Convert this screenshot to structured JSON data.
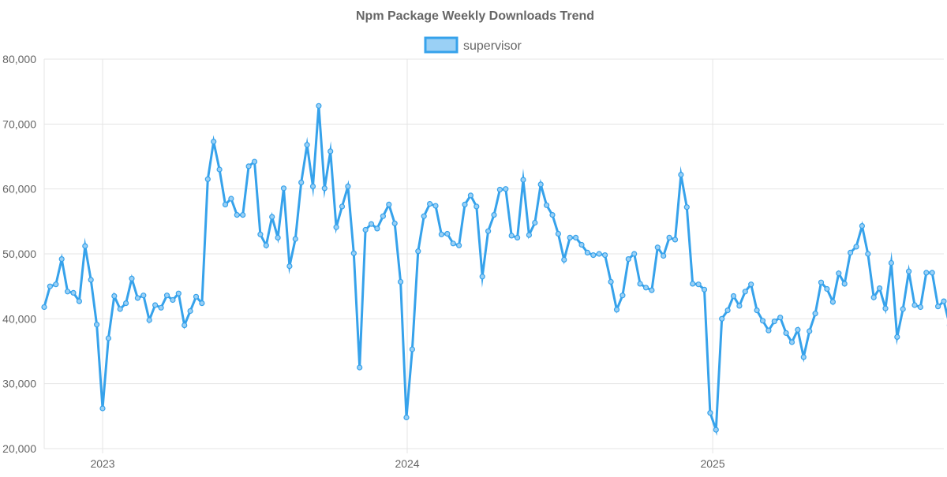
{
  "chart_data": {
    "type": "line",
    "title": "Npm Package Weekly Downloads Trend",
    "xlabel": "",
    "ylabel": "",
    "ylim": [
      20000,
      80000
    ],
    "yticks": [
      20000,
      30000,
      40000,
      50000,
      60000,
      70000,
      80000
    ],
    "ytick_labels": [
      "20,000",
      "30,000",
      "40,000",
      "50,000",
      "60,000",
      "70,000",
      "80,000"
    ],
    "xticks": [
      "2023",
      "2024",
      "2025"
    ],
    "xrange": [
      "2022-10-23",
      "2025-10-05"
    ],
    "grid": true,
    "legend_position": "top-center",
    "series": [
      {
        "name": "supervisor",
        "color": "#36a2eb",
        "fill": "#9ad0f5",
        "points": [
          [
            "2022-10-23",
            41800
          ],
          [
            "2022-10-30",
            45000
          ],
          [
            "2022-11-06",
            45300
          ],
          [
            "2022-11-13",
            49200
          ],
          [
            "2022-11-20",
            44200
          ],
          [
            "2022-11-27",
            44000
          ],
          [
            "2022-12-04",
            42700
          ],
          [
            "2022-12-11",
            51200
          ],
          [
            "2022-12-18",
            46000
          ],
          [
            "2022-12-25",
            39100
          ],
          [
            "2023-01-01",
            26200
          ],
          [
            "2023-01-08",
            37000
          ],
          [
            "2023-01-15",
            43500
          ],
          [
            "2023-01-22",
            41500
          ],
          [
            "2023-01-29",
            42400
          ],
          [
            "2023-02-05",
            46200
          ],
          [
            "2023-02-12",
            43200
          ],
          [
            "2023-02-19",
            43600
          ],
          [
            "2023-02-26",
            39800
          ],
          [
            "2023-03-05",
            42100
          ],
          [
            "2023-03-12",
            41700
          ],
          [
            "2023-03-19",
            43600
          ],
          [
            "2023-03-26",
            42900
          ],
          [
            "2023-04-02",
            43900
          ],
          [
            "2023-04-09",
            39000
          ],
          [
            "2023-04-16",
            41200
          ],
          [
            "2023-04-23",
            43400
          ],
          [
            "2023-04-30",
            42400
          ],
          [
            "2023-05-07",
            61500
          ],
          [
            "2023-05-14",
            67300
          ],
          [
            "2023-05-21",
            63000
          ],
          [
            "2023-05-28",
            57600
          ],
          [
            "2023-06-04",
            58500
          ],
          [
            "2023-06-11",
            56000
          ],
          [
            "2023-06-18",
            56000
          ],
          [
            "2023-06-25",
            63500
          ],
          [
            "2023-07-02",
            64200
          ],
          [
            "2023-07-09",
            53000
          ],
          [
            "2023-07-16",
            51300
          ],
          [
            "2023-07-23",
            55700
          ],
          [
            "2023-07-30",
            52500
          ],
          [
            "2023-08-06",
            60100
          ],
          [
            "2023-08-13",
            48100
          ],
          [
            "2023-08-20",
            52300
          ],
          [
            "2023-08-27",
            61000
          ],
          [
            "2023-09-03",
            66800
          ],
          [
            "2023-09-10",
            60400
          ],
          [
            "2023-09-17",
            72800
          ],
          [
            "2023-09-24",
            60100
          ],
          [
            "2023-10-01",
            65800
          ],
          [
            "2023-10-08",
            54100
          ],
          [
            "2023-10-15",
            57300
          ],
          [
            "2023-10-22",
            60400
          ],
          [
            "2023-10-29",
            50100
          ],
          [
            "2023-11-05",
            32500
          ],
          [
            "2023-11-12",
            53700
          ],
          [
            "2023-11-19",
            54600
          ],
          [
            "2023-11-26",
            53900
          ],
          [
            "2023-12-03",
            55800
          ],
          [
            "2023-12-10",
            57600
          ],
          [
            "2023-12-17",
            54700
          ],
          [
            "2023-12-24",
            45700
          ],
          [
            "2023-12-31",
            24800
          ],
          [
            "2024-01-07",
            35300
          ],
          [
            "2024-01-14",
            50400
          ],
          [
            "2024-01-21",
            55800
          ],
          [
            "2024-01-28",
            57700
          ],
          [
            "2024-02-04",
            57400
          ],
          [
            "2024-02-11",
            53000
          ],
          [
            "2024-02-18",
            53100
          ],
          [
            "2024-02-25",
            51600
          ],
          [
            "2024-03-03",
            51300
          ],
          [
            "2024-03-10",
            57600
          ],
          [
            "2024-03-17",
            59000
          ],
          [
            "2024-03-24",
            57300
          ],
          [
            "2024-03-31",
            46500
          ],
          [
            "2024-04-07",
            53500
          ],
          [
            "2024-04-14",
            56000
          ],
          [
            "2024-04-21",
            59900
          ],
          [
            "2024-04-28",
            60000
          ],
          [
            "2024-05-05",
            52800
          ],
          [
            "2024-05-12",
            52500
          ],
          [
            "2024-05-19",
            61400
          ],
          [
            "2024-05-26",
            52900
          ],
          [
            "2024-06-02",
            54800
          ],
          [
            "2024-06-09",
            60700
          ],
          [
            "2024-06-16",
            57500
          ],
          [
            "2024-06-23",
            56000
          ],
          [
            "2024-06-30",
            53100
          ],
          [
            "2024-07-07",
            49100
          ],
          [
            "2024-07-14",
            52500
          ],
          [
            "2024-07-21",
            52500
          ],
          [
            "2024-07-28",
            51400
          ],
          [
            "2024-08-04",
            50200
          ],
          [
            "2024-08-11",
            49800
          ],
          [
            "2024-08-18",
            50000
          ],
          [
            "2024-08-25",
            49800
          ],
          [
            "2024-09-01",
            45700
          ],
          [
            "2024-09-08",
            41400
          ],
          [
            "2024-09-15",
            43600
          ],
          [
            "2024-09-22",
            49200
          ],
          [
            "2024-09-29",
            50000
          ],
          [
            "2024-10-06",
            45400
          ],
          [
            "2024-10-13",
            44800
          ],
          [
            "2024-10-20",
            44400
          ],
          [
            "2024-10-27",
            51000
          ],
          [
            "2024-11-03",
            49700
          ],
          [
            "2024-11-10",
            52500
          ],
          [
            "2024-11-17",
            52200
          ],
          [
            "2024-11-24",
            62200
          ],
          [
            "2024-12-01",
            57200
          ],
          [
            "2024-12-08",
            45400
          ],
          [
            "2024-12-15",
            45300
          ],
          [
            "2024-12-22",
            44500
          ],
          [
            "2024-12-29",
            25500
          ],
          [
            "2025-01-05",
            22900
          ],
          [
            "2025-01-12",
            40000
          ],
          [
            "2025-01-19",
            41300
          ],
          [
            "2025-01-26",
            43500
          ],
          [
            "2025-02-02",
            42000
          ],
          [
            "2025-02-09",
            44200
          ],
          [
            "2025-02-16",
            45300
          ],
          [
            "2025-02-23",
            41300
          ],
          [
            "2025-03-02",
            39700
          ],
          [
            "2025-03-09",
            38200
          ],
          [
            "2025-03-16",
            39600
          ],
          [
            "2025-03-23",
            40200
          ],
          [
            "2025-03-30",
            37800
          ],
          [
            "2025-04-06",
            36400
          ],
          [
            "2025-04-13",
            38300
          ],
          [
            "2025-04-20",
            34100
          ],
          [
            "2025-04-27",
            38100
          ],
          [
            "2025-05-04",
            40800
          ],
          [
            "2025-05-11",
            45600
          ],
          [
            "2025-05-18",
            44600
          ],
          [
            "2025-05-25",
            42600
          ],
          [
            "2025-06-01",
            47000
          ],
          [
            "2025-06-08",
            45400
          ],
          [
            "2025-06-15",
            50200
          ],
          [
            "2025-06-22",
            51100
          ],
          [
            "2025-06-29",
            54300
          ],
          [
            "2025-07-06",
            50000
          ],
          [
            "2025-07-13",
            43300
          ],
          [
            "2025-07-20",
            44700
          ],
          [
            "2025-07-27",
            41600
          ],
          [
            "2025-08-03",
            48600
          ],
          [
            "2025-08-10",
            37200
          ],
          [
            "2025-08-17",
            41500
          ],
          [
            "2025-08-24",
            47300
          ],
          [
            "2025-08-31",
            42100
          ],
          [
            "2025-09-07",
            41800
          ],
          [
            "2025-09-14",
            47100
          ],
          [
            "2025-09-21",
            47100
          ],
          [
            "2025-09-28",
            41900
          ],
          [
            "2025-10-05",
            42700
          ],
          [
            "2025-10-12",
            39000
          ]
        ]
      }
    ]
  }
}
